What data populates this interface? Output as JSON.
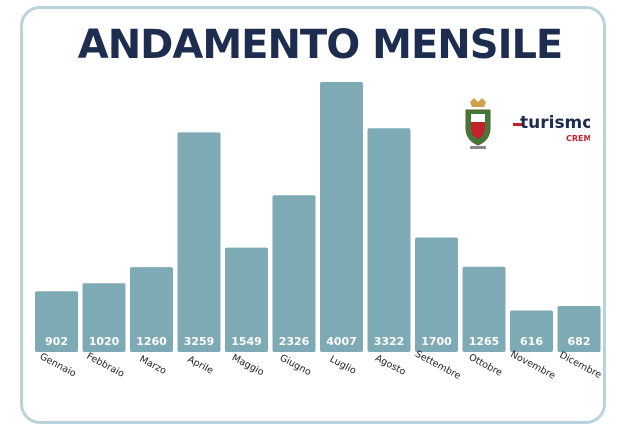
{
  "chart_data": {
    "type": "bar",
    "title": "ANDAMENTO MENSILE",
    "categories": [
      "Gennaio",
      "Febbraio",
      "Marzo",
      "Aprile",
      "Maggio",
      "Giugno",
      "Luglio",
      "Agosto",
      "Settembre",
      "Ottobre",
      "Novembre",
      "Dicembre"
    ],
    "values": [
      902,
      1020,
      1260,
      3259,
      1549,
      2326,
      4007,
      3322,
      1700,
      1265,
      616,
      682
    ],
    "value_labels": [
      "902",
      "1020",
      "1260",
      "3259",
      "1549",
      "2326",
      "4007",
      "3322",
      "1700",
      "1265",
      "616",
      "682"
    ],
    "ylim": [
      0,
      4007
    ],
    "grid": false,
    "bar_color": "#7eaab5"
  },
  "logo": {
    "brand": "turismo",
    "city": "CREMA",
    "accent_color": "#c5212b",
    "icon": "crema-coat-of-arms-icon"
  }
}
